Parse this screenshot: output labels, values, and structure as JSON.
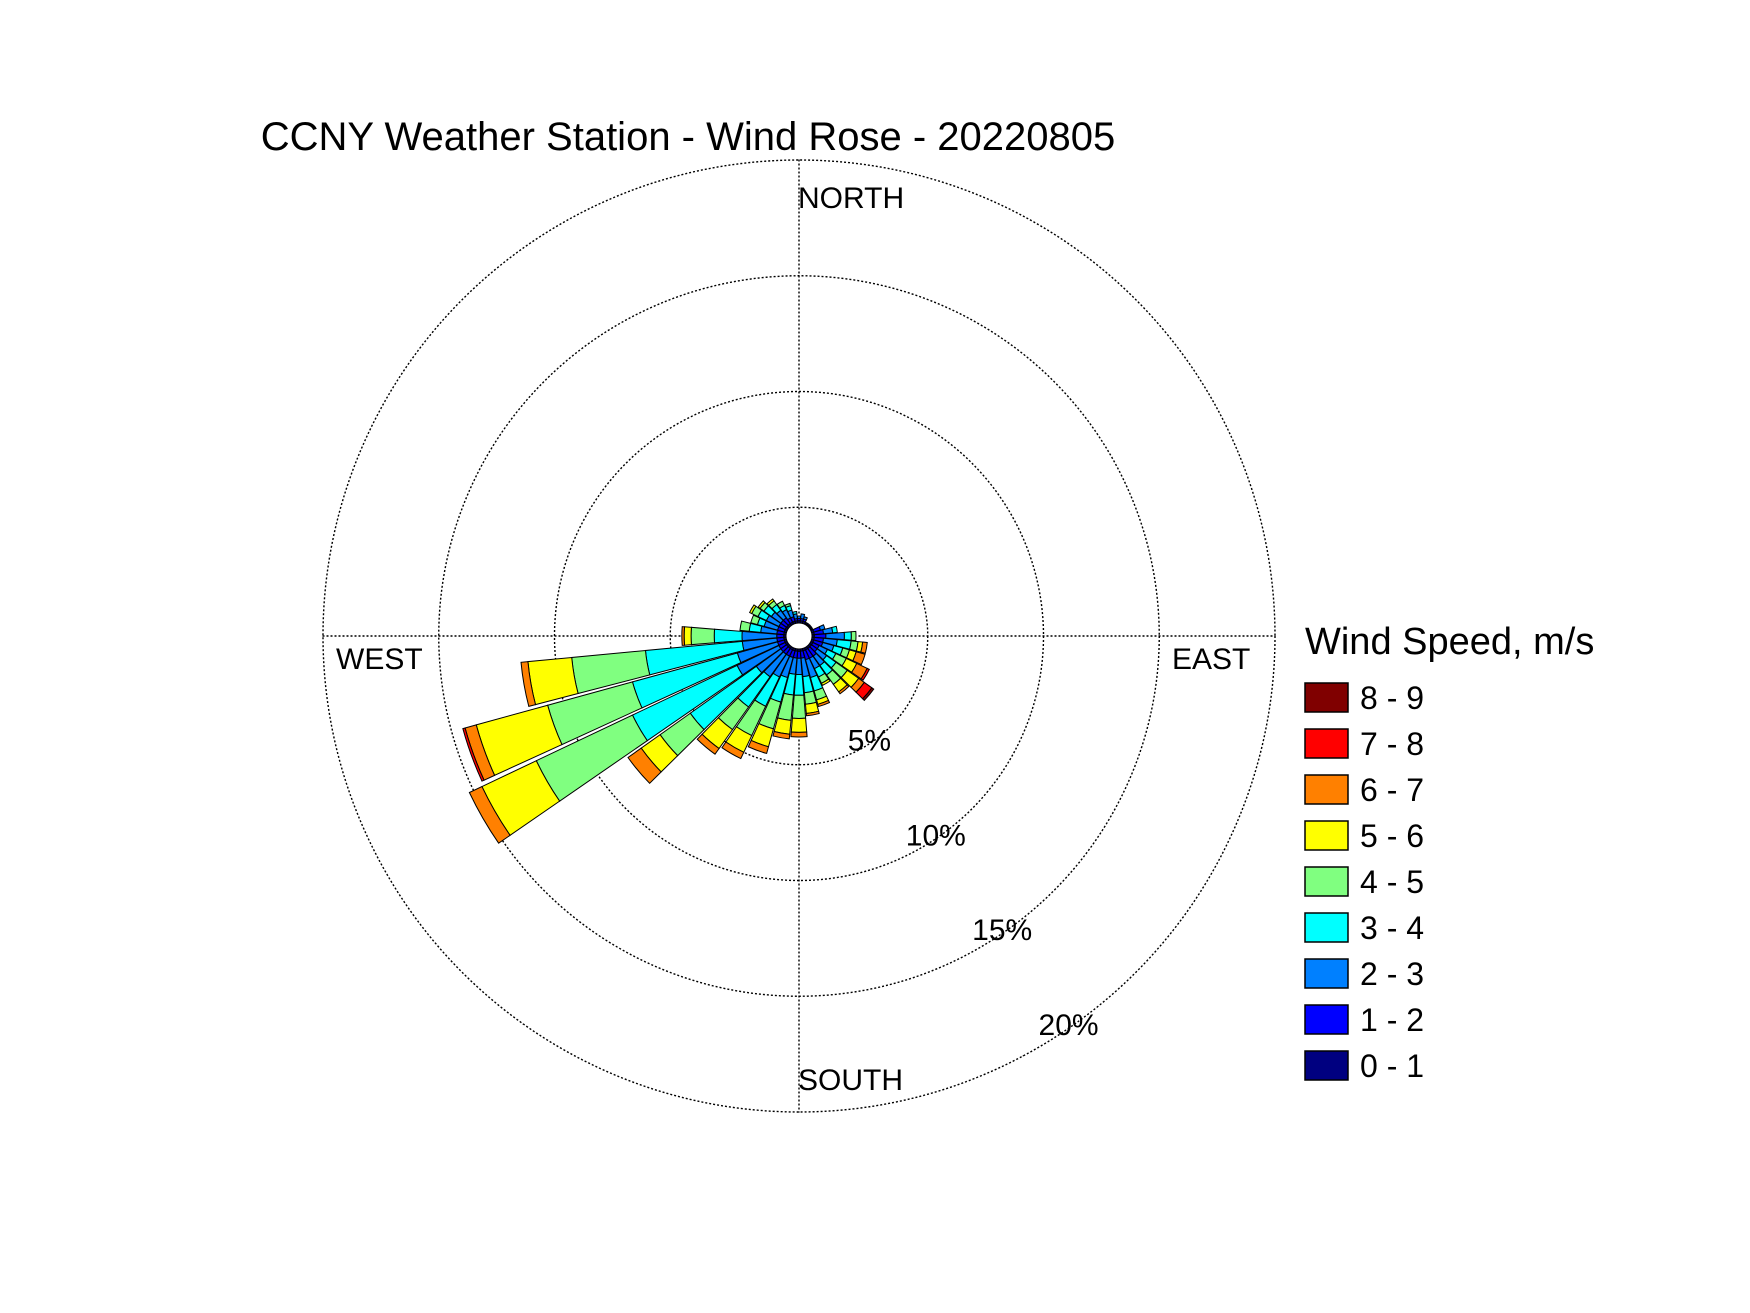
{
  "chart_data": {
    "type": "wind_rose",
    "title": "CCNY Weather Station - Wind Rose - 20220805",
    "direction_labels": {
      "north": "NORTH",
      "east": "EAST",
      "south": "SOUTH",
      "west": "WEST"
    },
    "radial_ticks": [
      {
        "value": 5,
        "label": "5%"
      },
      {
        "value": 10,
        "label": "10%"
      },
      {
        "value": 15,
        "label": "15%"
      },
      {
        "value": 20,
        "label": "20%"
      }
    ],
    "radial_max": 20,
    "grid": true,
    "legend": {
      "title": "Wind Speed, m/s",
      "placement": "right",
      "bins": [
        {
          "label": "8 - 9",
          "color": "#800000"
        },
        {
          "label": "7 - 8",
          "color": "#ff0000"
        },
        {
          "label": "6 - 7",
          "color": "#ff8000"
        },
        {
          "label": "5 - 6",
          "color": "#ffff00"
        },
        {
          "label": "4 - 5",
          "color": "#80ff80"
        },
        {
          "label": "3 - 4",
          "color": "#00ffff"
        },
        {
          "label": "2 - 3",
          "color": "#0080ff"
        },
        {
          "label": "1 - 2",
          "color": "#0000ff"
        },
        {
          "label": "0 - 1",
          "color": "#000080"
        }
      ]
    },
    "speed_bins": [
      "0 - 1",
      "1 - 2",
      "2 - 3",
      "3 - 4",
      "4 - 5",
      "5 - 6",
      "6 - 7",
      "7 - 8",
      "8 - 9"
    ],
    "units": "percent of observations, cumulative by direction",
    "directions": [
      {
        "deg": 0,
        "counts": [
          0.1,
          0.1,
          0.1,
          0,
          0,
          0,
          0,
          0,
          0
        ]
      },
      {
        "deg": 10,
        "counts": [
          0.1,
          0.1,
          0.2,
          0,
          0,
          0,
          0,
          0,
          0
        ]
      },
      {
        "deg": 20,
        "counts": [
          0.1,
          0.1,
          0.1,
          0,
          0,
          0,
          0,
          0,
          0
        ]
      },
      {
        "deg": 30,
        "counts": [
          0.05,
          0.05,
          0,
          0,
          0,
          0,
          0,
          0,
          0
        ]
      },
      {
        "deg": 40,
        "counts": [
          0.05,
          0.05,
          0,
          0,
          0,
          0,
          0,
          0,
          0
        ]
      },
      {
        "deg": 50,
        "counts": [
          0.05,
          0.05,
          0,
          0,
          0,
          0,
          0,
          0,
          0
        ]
      },
      {
        "deg": 60,
        "counts": [
          0.05,
          0.05,
          0,
          0,
          0,
          0,
          0,
          0,
          0
        ]
      },
      {
        "deg": 70,
        "counts": [
          0.1,
          0.3,
          0.2,
          0,
          0,
          0,
          0,
          0,
          0
        ]
      },
      {
        "deg": 80,
        "counts": [
          0.1,
          0.4,
          0.4,
          0.2,
          0,
          0,
          0,
          0,
          0
        ]
      },
      {
        "deg": 90,
        "counts": [
          0.1,
          0.5,
          0.8,
          0.3,
          0.2,
          0,
          0,
          0,
          0
        ]
      },
      {
        "deg": 100,
        "counts": [
          0.1,
          0.4,
          0.6,
          0.6,
          0.3,
          0.2,
          0.2,
          0,
          0
        ]
      },
      {
        "deg": 110,
        "counts": [
          0.1,
          0.4,
          0.5,
          0.4,
          0.3,
          0.3,
          0.4,
          0,
          0
        ]
      },
      {
        "deg": 120,
        "counts": [
          0.1,
          0.3,
          0.4,
          0.4,
          0.5,
          0.5,
          0.5,
          0.1,
          0
        ]
      },
      {
        "deg": 130,
        "counts": [
          0.1,
          0.3,
          0.5,
          0.5,
          0.6,
          0.6,
          0.3,
          0.4,
          0.1
        ]
      },
      {
        "deg": 140,
        "counts": [
          0.1,
          0.4,
          0.5,
          0.5,
          0.5,
          0.4,
          0.1,
          0,
          0
        ]
      },
      {
        "deg": 150,
        "counts": [
          0.1,
          0.4,
          0.5,
          0.4,
          0.3,
          0.1,
          0,
          0,
          0
        ]
      },
      {
        "deg": 160,
        "counts": [
          0.1,
          0.4,
          0.8,
          0.6,
          0.4,
          0.2,
          0.1,
          0,
          0
        ]
      },
      {
        "deg": 170,
        "counts": [
          0.1,
          0.3,
          0.8,
          0.7,
          0.5,
          0.4,
          0.1,
          0,
          0
        ]
      },
      {
        "deg": 180,
        "counts": [
          0.1,
          0.3,
          0.7,
          0.9,
          1.0,
          0.6,
          0.2,
          0,
          0
        ]
      },
      {
        "deg": 190,
        "counts": [
          0.1,
          0.3,
          0.7,
          0.9,
          1.1,
          0.6,
          0.2,
          0,
          0
        ]
      },
      {
        "deg": 200,
        "counts": [
          0.1,
          0.3,
          0.9,
          1.1,
          1.2,
          0.8,
          0.3,
          0,
          0
        ]
      },
      {
        "deg": 210,
        "counts": [
          0.1,
          0.3,
          1.0,
          1.4,
          1.4,
          0.8,
          0.3,
          0,
          0
        ]
      },
      {
        "deg": 220,
        "counts": [
          0.1,
          0.3,
          1.2,
          1.6,
          1.2,
          1.0,
          0.3,
          0,
          0
        ]
      },
      {
        "deg": 230,
        "counts": [
          0.1,
          0.3,
          1.3,
          3.5,
          1.6,
          1.0,
          0.7,
          0,
          0
        ]
      },
      {
        "deg": 240,
        "counts": [
          0.1,
          0.3,
          2.0,
          5.0,
          4.6,
          2.6,
          0.6,
          0,
          0
        ]
      },
      {
        "deg": 250,
        "counts": [
          0.1,
          0.3,
          1.8,
          4.7,
          3.8,
          3.2,
          0.5,
          0.1,
          0
        ]
      },
      {
        "deg": 260,
        "counts": [
          0.1,
          0.3,
          1.5,
          4.2,
          3.2,
          1.9,
          0.3,
          0,
          0
        ]
      },
      {
        "deg": 270,
        "counts": [
          0.1,
          0.3,
          1.5,
          1.2,
          1.0,
          0.3,
          0.1,
          0,
          0
        ]
      },
      {
        "deg": 280,
        "counts": [
          0.1,
          0.3,
          0.7,
          0.5,
          0.4,
          0,
          0,
          0,
          0
        ]
      },
      {
        "deg": 290,
        "counts": [
          0.1,
          0.3,
          0.6,
          0.3,
          0.3,
          0,
          0,
          0,
          0
        ]
      },
      {
        "deg": 300,
        "counts": [
          0.1,
          0.3,
          0.6,
          0.4,
          0.3,
          0.1,
          0,
          0,
          0
        ]
      },
      {
        "deg": 310,
        "counts": [
          0.1,
          0.3,
          0.5,
          0.4,
          0.2,
          0.1,
          0,
          0,
          0
        ]
      },
      {
        "deg": 320,
        "counts": [
          0.1,
          0.3,
          0.4,
          0.3,
          0.2,
          0.1,
          0,
          0,
          0
        ]
      },
      {
        "deg": 330,
        "counts": [
          0.1,
          0.2,
          0.4,
          0.2,
          0.2,
          0,
          0,
          0,
          0
        ]
      },
      {
        "deg": 340,
        "counts": [
          0.1,
          0.2,
          0.3,
          0.2,
          0.1,
          0,
          0,
          0,
          0
        ]
      },
      {
        "deg": 350,
        "counts": [
          0.1,
          0.1,
          0.2,
          0.1,
          0,
          0,
          0,
          0,
          0
        ]
      }
    ]
  }
}
